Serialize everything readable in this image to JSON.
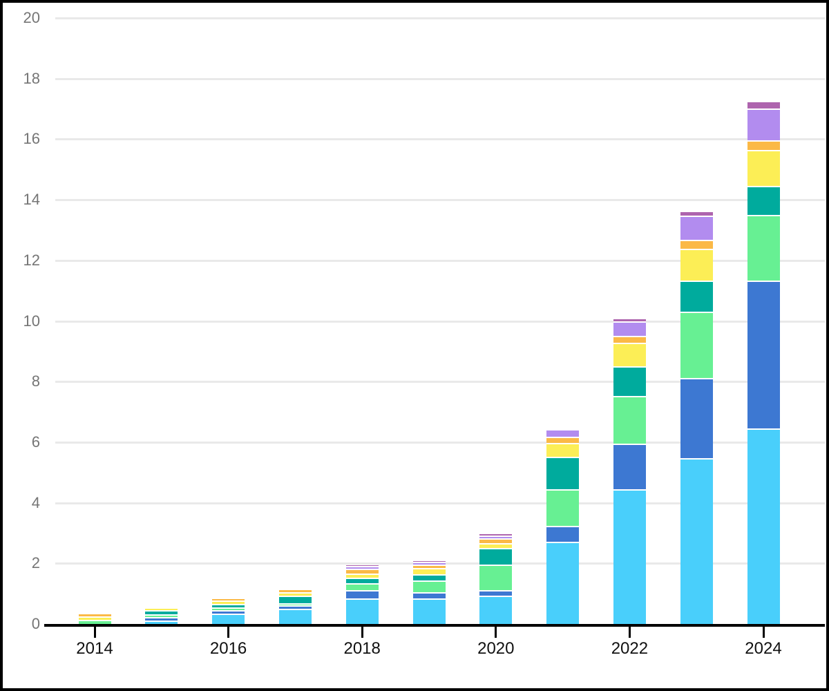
{
  "chart_data": {
    "type": "bar",
    "stacked": true,
    "title": "",
    "xlabel": "",
    "ylabel": "",
    "categories": [
      "2014",
      "2015",
      "2016",
      "2017",
      "2018",
      "2019",
      "2020",
      "2021",
      "2022",
      "2023",
      "2024"
    ],
    "x_axis_labeled_ticks": [
      "2014",
      "2016",
      "2018",
      "2020",
      "2022",
      "2024"
    ],
    "ylim": [
      0,
      20
    ],
    "yticks": [
      0,
      2,
      4,
      6,
      8,
      10,
      12,
      14,
      16,
      18,
      20
    ],
    "grid": "horizontal",
    "legend": "none",
    "colors": {
      "skyblue": "#49CFFB",
      "blue": "#3D78D2",
      "green": "#67F093",
      "teal": "#00AB9D",
      "yellow": "#FCEE56",
      "orange": "#FBB946",
      "purple": "#B28CEF",
      "mauve": "#AE64AE",
      "gridline": "#e9e9e9",
      "axis": "#000000",
      "ytick_text": "#757575",
      "xtick_text": "#111111"
    },
    "series": [
      {
        "name": "series-skyblue",
        "color": "#49CFFB",
        "values": [
          0.0,
          0.08,
          0.3,
          0.46,
          0.8,
          0.79,
          0.88,
          2.67,
          4.41,
          5.42,
          6.4
        ]
      },
      {
        "name": "series-blue",
        "color": "#3D78D2",
        "values": [
          0.0,
          0.1,
          0.1,
          0.1,
          0.28,
          0.21,
          0.2,
          0.52,
          1.49,
          2.65,
          4.88
        ]
      },
      {
        "name": "series-green",
        "color": "#67F093",
        "values": [
          0.1,
          0.1,
          0.1,
          0.09,
          0.22,
          0.39,
          0.83,
          1.21,
          1.58,
          2.2,
          2.17
        ]
      },
      {
        "name": "series-teal",
        "color": "#00AB9D",
        "values": [
          0.0,
          0.13,
          0.11,
          0.25,
          0.18,
          0.2,
          0.55,
          1.07,
          0.99,
          1.01,
          0.97
        ]
      },
      {
        "name": "series-yellow",
        "color": "#FCEE56",
        "values": [
          0.1,
          0.09,
          0.11,
          0.1,
          0.15,
          0.21,
          0.16,
          0.46,
          0.77,
          1.06,
          1.17
        ]
      },
      {
        "name": "series-orange",
        "color": "#FBB946",
        "values": [
          0.12,
          0.0,
          0.11,
          0.11,
          0.14,
          0.11,
          0.16,
          0.21,
          0.23,
          0.29,
          0.32
        ]
      },
      {
        "name": "series-purple",
        "color": "#B28CEF",
        "values": [
          0.0,
          0.0,
          0.0,
          0.03,
          0.11,
          0.09,
          0.1,
          0.25,
          0.48,
          0.81,
          1.05
        ]
      },
      {
        "name": "series-mauve",
        "color": "#AE64AE",
        "values": [
          0.0,
          0.0,
          0.0,
          0.04,
          0.07,
          0.08,
          0.09,
          0.05,
          0.1,
          0.16,
          0.26
        ]
      }
    ],
    "stack_totals": [
      0.32,
      0.5,
      0.83,
      1.18,
      1.95,
      2.08,
      2.97,
      6.44,
      10.05,
      13.6,
      17.22
    ]
  }
}
